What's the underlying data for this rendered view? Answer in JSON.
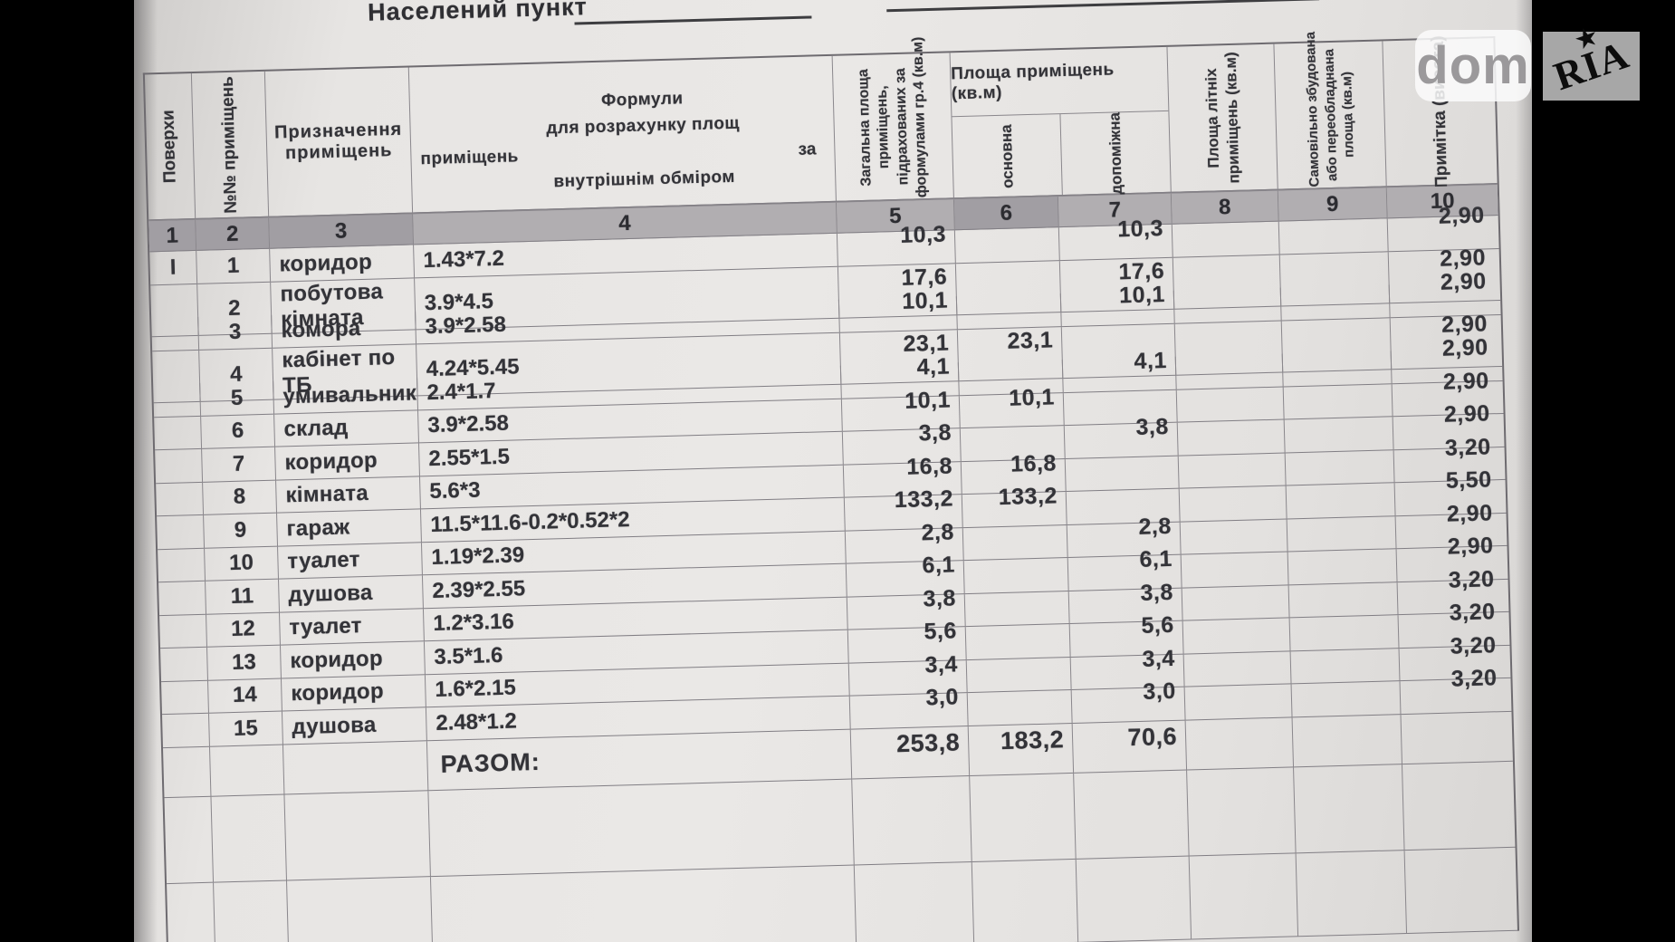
{
  "top_line": {
    "label": "Населений пункт"
  },
  "watermark": {
    "dom": "dom",
    "ria": "RIA",
    "star": "★"
  },
  "table": {
    "headers": {
      "floors": "Поверхи",
      "room_no": "№№  приміщень",
      "purpose": "Призначення  приміщень",
      "formula_l1": "Формули",
      "formula_l2": "для розрахунку площ",
      "formula_l3": "приміщень",
      "formula_za": "за",
      "formula_l4": "внутрішнім  обміром",
      "total_l1": "Загальна площа",
      "total_l2": "приміщень,",
      "total_l3": "підрахованих за",
      "total_l4": "формулами гр.4 (кв.м)",
      "area_group": "Площа приміщень (кв.м)",
      "main": "основна",
      "aux": "допоміжна",
      "summer_l1": "Площа літніх",
      "summer_l2": "приміщень (кв.м)",
      "unauth_l1": "Самовільно збудована",
      "unauth_l2": "або переобладнана",
      "unauth_l3": "площа (кв.м)",
      "note": "Примітка (висота)"
    },
    "col_numbers": [
      "1",
      "2",
      "3",
      "4",
      "5",
      "6",
      "7",
      "8",
      "9",
      "10"
    ],
    "rows": [
      {
        "floor": "I",
        "num": "1",
        "name": "коридор",
        "formula": "1.43*7.2",
        "total": "10,3",
        "main": "",
        "aux": "10,3",
        "summer": "",
        "unauth": "",
        "note": "2,90"
      },
      {
        "floor": "",
        "num": "2",
        "name": "побутова кімната",
        "formula": "3.9*4.5",
        "total": "17,6",
        "main": "",
        "aux": "17,6",
        "summer": "",
        "unauth": "",
        "note": "2,90"
      },
      {
        "floor": "",
        "num": "3",
        "name": "комора",
        "formula": "3.9*2.58",
        "total": "10,1",
        "main": "",
        "aux": "10,1",
        "summer": "",
        "unauth": "",
        "note": "2,90"
      },
      {
        "floor": "",
        "num": "4",
        "name": "кабінет по ТБ",
        "formula": "4.24*5.45",
        "total": "23,1",
        "main": "23,1",
        "aux": "",
        "summer": "",
        "unauth": "",
        "note": "2,90"
      },
      {
        "floor": "",
        "num": "5",
        "name": "умивальник",
        "formula": "2.4*1.7",
        "total": "4,1",
        "main": "",
        "aux": "4,1",
        "summer": "",
        "unauth": "",
        "note": "2,90"
      },
      {
        "floor": "",
        "num": "6",
        "name": "склад",
        "formula": "3.9*2.58",
        "total": "10,1",
        "main": "10,1",
        "aux": "",
        "summer": "",
        "unauth": "",
        "note": "2,90"
      },
      {
        "floor": "",
        "num": "7",
        "name": "коридор",
        "formula": "2.55*1.5",
        "total": "3,8",
        "main": "",
        "aux": "3,8",
        "summer": "",
        "unauth": "",
        "note": "2,90"
      },
      {
        "floor": "",
        "num": "8",
        "name": "кімната",
        "formula": "5.6*3",
        "total": "16,8",
        "main": "16,8",
        "aux": "",
        "summer": "",
        "unauth": "",
        "note": "3,20"
      },
      {
        "floor": "",
        "num": "9",
        "name": "гараж",
        "formula": "11.5*11.6-0.2*0.52*2",
        "total": "133,2",
        "main": "133,2",
        "aux": "",
        "summer": "",
        "unauth": "",
        "note": "5,50"
      },
      {
        "floor": "",
        "num": "10",
        "name": "туалет",
        "formula": "1.19*2.39",
        "total": "2,8",
        "main": "",
        "aux": "2,8",
        "summer": "",
        "unauth": "",
        "note": "2,90"
      },
      {
        "floor": "",
        "num": "11",
        "name": "душова",
        "formula": "2.39*2.55",
        "total": "6,1",
        "main": "",
        "aux": "6,1",
        "summer": "",
        "unauth": "",
        "note": "2,90"
      },
      {
        "floor": "",
        "num": "12",
        "name": "туалет",
        "formula": "1.2*3.16",
        "total": "3,8",
        "main": "",
        "aux": "3,8",
        "summer": "",
        "unauth": "",
        "note": "3,20"
      },
      {
        "floor": "",
        "num": "13",
        "name": "коридор",
        "formula": "3.5*1.6",
        "total": "5,6",
        "main": "",
        "aux": "5,6",
        "summer": "",
        "unauth": "",
        "note": "3,20"
      },
      {
        "floor": "",
        "num": "14",
        "name": "коридор",
        "formula": "1.6*2.15",
        "total": "3,4",
        "main": "",
        "aux": "3,4",
        "summer": "",
        "unauth": "",
        "note": "3,20"
      },
      {
        "floor": "",
        "num": "15",
        "name": "душова",
        "formula": "2.48*1.2",
        "total": "3,0",
        "main": "",
        "aux": "3,0",
        "summer": "",
        "unauth": "",
        "note": "3,20"
      }
    ],
    "totals": {
      "label": "РАЗОМ:",
      "total": "253,8",
      "main": "183,2",
      "aux": "70,6"
    }
  }
}
